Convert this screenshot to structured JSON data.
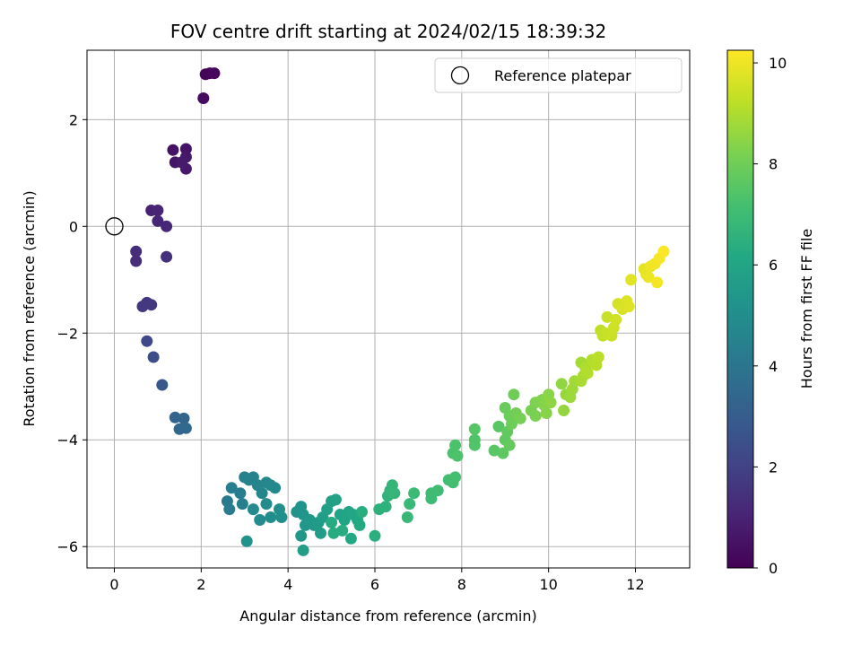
{
  "chart_data": {
    "type": "scatter",
    "title": "FOV centre drift starting at 2024/02/15 18:39:32",
    "xlabel": "Angular distance from reference (arcmin)",
    "ylabel": "Rotation from reference (arcmin)",
    "xlim": [
      -0.63,
      13.25
    ],
    "ylim": [
      -6.4,
      3.3
    ],
    "xticks": [
      0,
      2,
      4,
      6,
      8,
      10,
      12
    ],
    "xtick_labels": [
      "0",
      "2",
      "4",
      "6",
      "8",
      "10",
      "12"
    ],
    "yticks": [
      -6,
      -4,
      -2,
      0,
      2
    ],
    "ytick_labels": [
      "−6",
      "−4",
      "−2",
      "0",
      "2"
    ],
    "grid": true,
    "legend": {
      "position": "upper right",
      "entries": [
        "Reference platepar"
      ]
    },
    "reference_point": {
      "x": 0,
      "y": 0,
      "label": "Reference platepar"
    },
    "colorbar": {
      "label": "Hours from first FF file",
      "min": 0,
      "max": 10.25,
      "ticks": [
        0,
        2,
        4,
        6,
        8,
        10
      ],
      "tick_labels": [
        "0",
        "2",
        "4",
        "6",
        "8",
        "10"
      ],
      "colormap": "viridis"
    },
    "series": [
      {
        "points": [
          [
            2.1,
            2.85,
            0.1
          ],
          [
            2.2,
            2.87,
            0.15
          ],
          [
            2.3,
            2.87,
            0.2
          ],
          [
            2.05,
            2.4,
            0.3
          ],
          [
            1.35,
            1.43,
            0.5
          ],
          [
            1.65,
            1.45,
            0.55
          ],
          [
            1.4,
            1.2,
            0.6
          ],
          [
            1.65,
            1.3,
            0.65
          ],
          [
            1.65,
            1.08,
            0.7
          ],
          [
            1.55,
            1.2,
            0.75
          ],
          [
            0.85,
            0.3,
            1.0
          ],
          [
            1.0,
            0.3,
            1.05
          ],
          [
            1.0,
            0.1,
            1.1
          ],
          [
            1.2,
            0.0,
            1.15
          ],
          [
            0.5,
            -0.47,
            1.3
          ],
          [
            0.5,
            -0.65,
            1.35
          ],
          [
            1.2,
            -0.57,
            1.4
          ],
          [
            0.75,
            -1.43,
            1.6
          ],
          [
            0.85,
            -1.47,
            1.65
          ],
          [
            0.65,
            -1.5,
            1.7
          ],
          [
            0.75,
            -2.15,
            2.2
          ],
          [
            0.9,
            -2.45,
            2.4
          ],
          [
            1.1,
            -2.97,
            2.8
          ],
          [
            1.4,
            -3.58,
            3.3
          ],
          [
            1.6,
            -3.6,
            3.35
          ],
          [
            1.5,
            -3.8,
            3.4
          ],
          [
            1.65,
            -3.78,
            3.45
          ],
          [
            2.6,
            -5.15,
            4.2
          ],
          [
            2.65,
            -5.3,
            4.25
          ],
          [
            2.7,
            -4.9,
            4.3
          ],
          [
            2.9,
            -5.0,
            4.35
          ],
          [
            2.95,
            -5.2,
            4.4
          ],
          [
            3.0,
            -4.7,
            4.45
          ],
          [
            3.1,
            -4.75,
            4.5
          ],
          [
            3.2,
            -4.7,
            4.55
          ],
          [
            3.3,
            -4.85,
            4.6
          ],
          [
            3.4,
            -5.0,
            4.65
          ],
          [
            3.5,
            -4.8,
            4.7
          ],
          [
            3.6,
            -4.85,
            4.75
          ],
          [
            3.7,
            -4.9,
            4.8
          ],
          [
            3.2,
            -5.3,
            4.85
          ],
          [
            3.35,
            -5.5,
            4.9
          ],
          [
            3.5,
            -5.2,
            4.95
          ],
          [
            3.6,
            -5.45,
            5.0
          ],
          [
            3.8,
            -5.3,
            5.05
          ],
          [
            3.85,
            -5.45,
            5.1
          ],
          [
            3.05,
            -5.9,
            5.15
          ],
          [
            4.2,
            -5.35,
            5.2
          ],
          [
            4.3,
            -5.25,
            5.25
          ],
          [
            4.35,
            -5.4,
            5.3
          ],
          [
            4.4,
            -5.6,
            5.35
          ],
          [
            4.3,
            -5.8,
            5.4
          ],
          [
            4.5,
            -5.5,
            5.45
          ],
          [
            4.6,
            -5.6,
            5.5
          ],
          [
            4.7,
            -5.55,
            5.55
          ],
          [
            4.75,
            -5.75,
            5.6
          ],
          [
            4.8,
            -5.45,
            5.65
          ],
          [
            4.35,
            -6.07,
            5.7
          ],
          [
            4.9,
            -5.3,
            5.75
          ],
          [
            5.0,
            -5.15,
            5.8
          ],
          [
            5.1,
            -5.12,
            5.85
          ],
          [
            5.2,
            -5.4,
            5.9
          ],
          [
            5.3,
            -5.5,
            5.95
          ],
          [
            5.4,
            -5.35,
            6.0
          ],
          [
            5.5,
            -5.4,
            6.05
          ],
          [
            5.6,
            -5.5,
            6.1
          ],
          [
            5.45,
            -5.85,
            6.15
          ],
          [
            5.65,
            -5.6,
            6.2
          ],
          [
            5.0,
            -5.55,
            6.25
          ],
          [
            5.05,
            -5.75,
            6.3
          ],
          [
            5.25,
            -5.7,
            6.35
          ],
          [
            5.7,
            -5.35,
            6.4
          ],
          [
            6.0,
            -5.8,
            6.45
          ],
          [
            6.1,
            -5.3,
            6.5
          ],
          [
            6.25,
            -5.25,
            6.55
          ],
          [
            6.3,
            -5.05,
            6.6
          ],
          [
            6.35,
            -4.95,
            6.65
          ],
          [
            6.4,
            -4.85,
            6.7
          ],
          [
            6.45,
            -5.0,
            6.75
          ],
          [
            6.75,
            -5.45,
            6.8
          ],
          [
            6.8,
            -5.2,
            6.85
          ],
          [
            6.9,
            -5.0,
            6.9
          ],
          [
            7.3,
            -5.1,
            6.95
          ],
          [
            7.3,
            -5.0,
            7.0
          ],
          [
            7.45,
            -4.95,
            7.05
          ],
          [
            7.7,
            -4.75,
            7.1
          ],
          [
            7.8,
            -4.8,
            7.15
          ],
          [
            7.85,
            -4.7,
            7.2
          ],
          [
            7.8,
            -4.25,
            7.25
          ],
          [
            7.85,
            -4.1,
            7.3
          ],
          [
            7.9,
            -4.3,
            7.35
          ],
          [
            8.3,
            -4.0,
            7.4
          ],
          [
            8.3,
            -4.1,
            7.45
          ],
          [
            8.3,
            -3.8,
            7.5
          ],
          [
            8.75,
            -4.2,
            7.55
          ],
          [
            8.85,
            -3.75,
            7.6
          ],
          [
            8.95,
            -4.25,
            7.65
          ],
          [
            9.0,
            -4.0,
            7.7
          ],
          [
            9.05,
            -3.85,
            7.75
          ],
          [
            9.1,
            -4.1,
            7.8
          ],
          [
            9.0,
            -3.4,
            7.85
          ],
          [
            9.1,
            -3.55,
            7.9
          ],
          [
            9.15,
            -3.7,
            7.95
          ],
          [
            9.2,
            -3.15,
            8.0
          ],
          [
            9.25,
            -3.5,
            8.05
          ],
          [
            9.35,
            -3.6,
            8.1
          ],
          [
            9.6,
            -3.45,
            8.15
          ],
          [
            9.7,
            -3.55,
            8.2
          ],
          [
            9.7,
            -3.3,
            8.25
          ],
          [
            9.85,
            -3.25,
            8.3
          ],
          [
            9.9,
            -3.35,
            8.35
          ],
          [
            9.95,
            -3.5,
            8.4
          ],
          [
            10.0,
            -3.15,
            8.45
          ],
          [
            10.05,
            -3.3,
            8.5
          ],
          [
            10.3,
            -2.95,
            8.55
          ],
          [
            10.35,
            -3.45,
            8.6
          ],
          [
            10.4,
            -3.15,
            8.65
          ],
          [
            10.5,
            -3.2,
            8.7
          ],
          [
            10.55,
            -3.05,
            8.75
          ],
          [
            10.6,
            -2.9,
            8.8
          ],
          [
            10.75,
            -2.55,
            8.85
          ],
          [
            10.75,
            -2.9,
            8.9
          ],
          [
            10.8,
            -2.8,
            8.95
          ],
          [
            10.85,
            -2.65,
            9.0
          ],
          [
            10.9,
            -2.75,
            9.05
          ],
          [
            11.0,
            -2.5,
            9.1
          ],
          [
            11.1,
            -2.6,
            9.15
          ],
          [
            11.15,
            -2.45,
            9.2
          ],
          [
            11.2,
            -1.95,
            9.25
          ],
          [
            11.25,
            -2.05,
            9.3
          ],
          [
            11.3,
            -2.0,
            9.35
          ],
          [
            11.35,
            -1.7,
            9.4
          ],
          [
            11.45,
            -2.05,
            9.45
          ],
          [
            11.5,
            -1.9,
            9.5
          ],
          [
            11.55,
            -1.75,
            9.55
          ],
          [
            11.6,
            -1.45,
            9.6
          ],
          [
            11.7,
            -1.55,
            9.65
          ],
          [
            11.8,
            -1.4,
            9.7
          ],
          [
            11.85,
            -1.5,
            9.75
          ],
          [
            11.9,
            -1.0,
            9.8
          ],
          [
            12.2,
            -0.8,
            9.85
          ],
          [
            12.25,
            -0.9,
            9.9
          ],
          [
            12.3,
            -0.95,
            9.95
          ],
          [
            12.35,
            -0.75,
            10.0
          ],
          [
            12.45,
            -0.7,
            10.05
          ],
          [
            12.5,
            -1.05,
            10.1
          ],
          [
            12.55,
            -0.6,
            10.15
          ],
          [
            12.65,
            -0.47,
            10.2
          ]
        ]
      }
    ]
  },
  "colors": {
    "grid": "#b0b0b0",
    "axes": "#000000",
    "reference_marker": "#000000"
  }
}
